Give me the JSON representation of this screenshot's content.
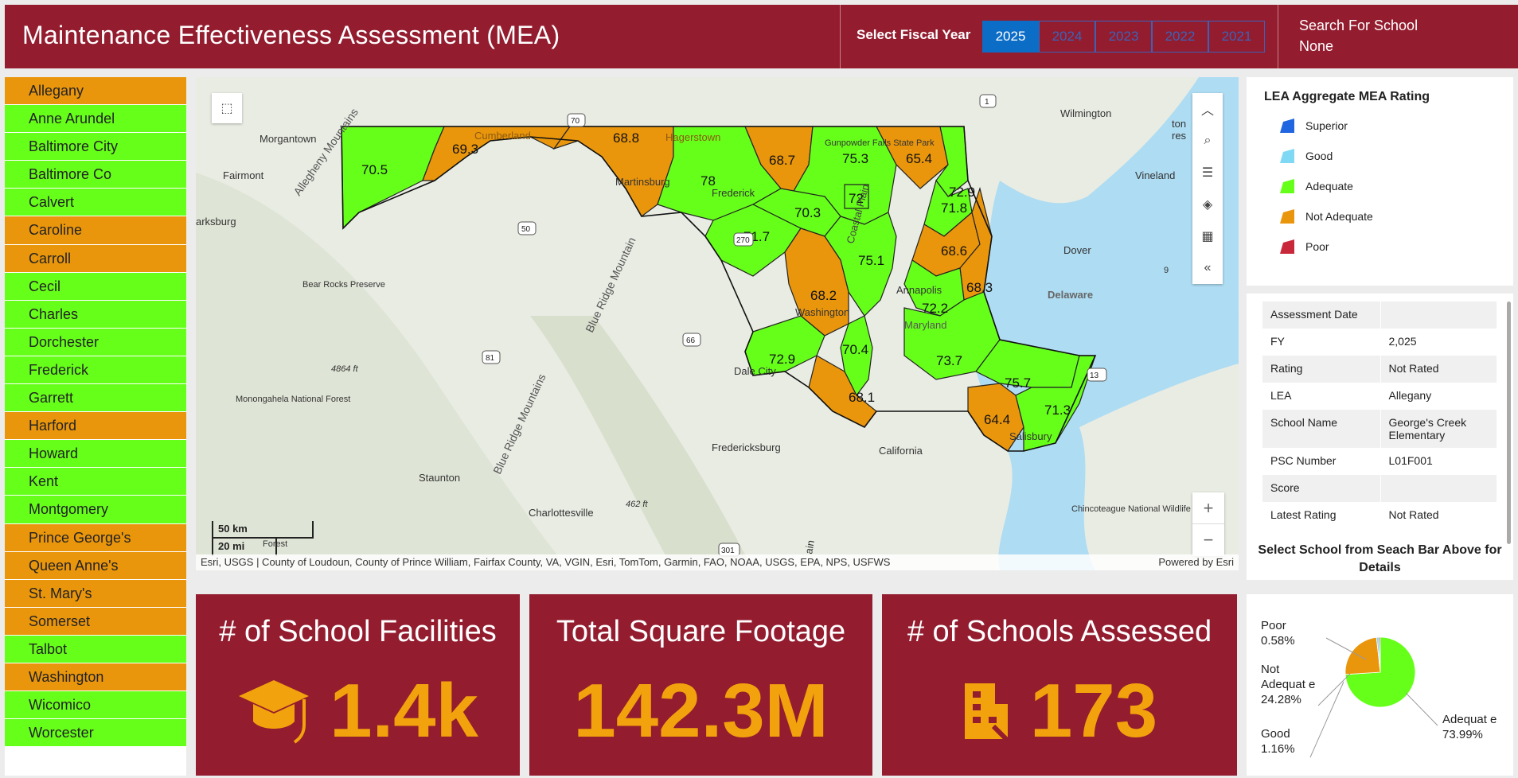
{
  "header": {
    "title": "Maintenance Effectiveness Assessment (MEA)",
    "fy_label": "Select Fiscal Year",
    "fiscal_years": [
      "2025",
      "2024",
      "2023",
      "2022",
      "2021"
    ],
    "selected_year": "2025",
    "search_label": "Search For School",
    "search_value": "None"
  },
  "lea_list": [
    {
      "name": "Allegany",
      "status": "orange"
    },
    {
      "name": "Anne Arundel",
      "status": "green"
    },
    {
      "name": "Baltimore City",
      "status": "green"
    },
    {
      "name": "Baltimore Co",
      "status": "green"
    },
    {
      "name": "Calvert",
      "status": "green"
    },
    {
      "name": "Caroline",
      "status": "orange"
    },
    {
      "name": "Carroll",
      "status": "orange"
    },
    {
      "name": "Cecil",
      "status": "green"
    },
    {
      "name": "Charles",
      "status": "green"
    },
    {
      "name": "Dorchester",
      "status": "green"
    },
    {
      "name": "Frederick",
      "status": "green"
    },
    {
      "name": "Garrett",
      "status": "green"
    },
    {
      "name": "Harford",
      "status": "orange"
    },
    {
      "name": "Howard",
      "status": "green"
    },
    {
      "name": "Kent",
      "status": "green"
    },
    {
      "name": "Montgomery",
      "status": "green"
    },
    {
      "name": "Prince George's",
      "status": "orange"
    },
    {
      "name": "Queen Anne's",
      "status": "orange"
    },
    {
      "name": "St. Mary's",
      "status": "orange"
    },
    {
      "name": "Somerset",
      "status": "orange"
    },
    {
      "name": "Talbot",
      "status": "green"
    },
    {
      "name": "Washington",
      "status": "orange"
    },
    {
      "name": "Wicomico",
      "status": "green"
    },
    {
      "name": "Worcester",
      "status": "green"
    }
  ],
  "colors": {
    "brand": "#931c2f",
    "accent": "#f2a20c",
    "adequate": "#66ff1a",
    "not_adequate": "#ea960c",
    "superior": "#1f66e0",
    "good": "#7fd9f5",
    "poor": "#c8283a"
  },
  "map": {
    "places": [
      "Morgantown",
      "Fairmont",
      "arksburg",
      "Cumberland",
      "Hagerstown",
      "Martinsburg",
      "Frederick",
      "Gunpowder Falls State Park",
      "Wilmington",
      "Vineland",
      "Dover",
      "Delaware",
      "Annapolis",
      "Washington",
      "Dale City",
      "Fredericksburg",
      "California",
      "Salisbury",
      "Chincoteague National Wildlife Refuge",
      "Charlottesville",
      "Staunton",
      "Bear Rocks Preserve",
      "Monongahela National Forest",
      "Allegheny Mountains",
      "Blue Ridge Mountain",
      "Blue Ridge Mountains",
      "Maryland",
      "Forest",
      "4864 ft",
      "462 ft",
      "Coastal Plain",
      "ton",
      "res",
      "ain",
      "9"
    ],
    "road_shields": [
      "1",
      "70",
      "50",
      "270",
      "66",
      "81",
      "13",
      "301"
    ],
    "county_scores": [
      "70.5",
      "69.3",
      "68.8",
      "78",
      "68.7",
      "75.3",
      "65.4",
      "72.9",
      "72",
      "70.3",
      "71.7",
      "71.8",
      "75.1",
      "68.6",
      "68.3",
      "72.2",
      "68.2",
      "72.9",
      "70.4",
      "73.7",
      "68.1",
      "75.7",
      "64.4",
      "71.3"
    ],
    "scale_km": "50 km",
    "scale_mi": "20 mi",
    "attribution": "Esri, USGS | County of Loudoun, County of Prince William, Fairfax County, VA, VGIN, Esri, TomTom, Garmin, FAO, NOAA, USGS, EPA, NPS, USFWS",
    "powered_by": "Powered by Esri",
    "tools": [
      "select-icon",
      "chevron-up-icon",
      "search-icon",
      "list-icon",
      "layers-icon",
      "qr-icon",
      "double-chevron-left-icon",
      "zoom-in-icon",
      "zoom-out-icon"
    ]
  },
  "legend": {
    "title": "LEA Aggregate MEA Rating",
    "items": [
      {
        "label": "Superior",
        "color": "#1f66e0"
      },
      {
        "label": "Good",
        "color": "#7fd9f5"
      },
      {
        "label": "Adequate",
        "color": "#66ff1a"
      },
      {
        "label": "Not Adequate",
        "color": "#ea960c"
      },
      {
        "label": "Poor",
        "color": "#c8283a"
      }
    ]
  },
  "details": {
    "rows": [
      {
        "label": "Assessment Date",
        "value": ""
      },
      {
        "label": "FY",
        "value": "2,025"
      },
      {
        "label": "Rating",
        "value": "Not Rated"
      },
      {
        "label": "LEA",
        "value": "Allegany"
      },
      {
        "label": "School Name",
        "value": "George's Creek Elementary"
      },
      {
        "label": "PSC Number",
        "value": "L01F001"
      },
      {
        "label": "Score",
        "value": ""
      },
      {
        "label": "Latest Rating",
        "value": "Not Rated"
      }
    ],
    "hint": "Select School from Seach Bar Above for Details"
  },
  "kpis": {
    "facilities": {
      "title": "# of School Facilities",
      "value": "1.4k",
      "icon": "graduation-cap-icon"
    },
    "sqft": {
      "title": "Total Square Footage",
      "value": "142.3M"
    },
    "assessed": {
      "title": "# of Schools Assessed",
      "value": "173",
      "icon": "building-icon"
    }
  },
  "chart_data": {
    "type": "pie",
    "slices": [
      {
        "label": "Adequat e",
        "value": 73.99,
        "display": "73.99%",
        "color": "#66ff1a"
      },
      {
        "label": "Not Adequat e",
        "value": 24.28,
        "display": "24.28%",
        "color": "#ea960c"
      },
      {
        "label": "Good",
        "value": 1.16,
        "display": "1.16%",
        "color": "#7fd9f5"
      },
      {
        "label": "Poor",
        "value": 0.58,
        "display": "0.58%",
        "color": "#c8283a"
      }
    ]
  }
}
